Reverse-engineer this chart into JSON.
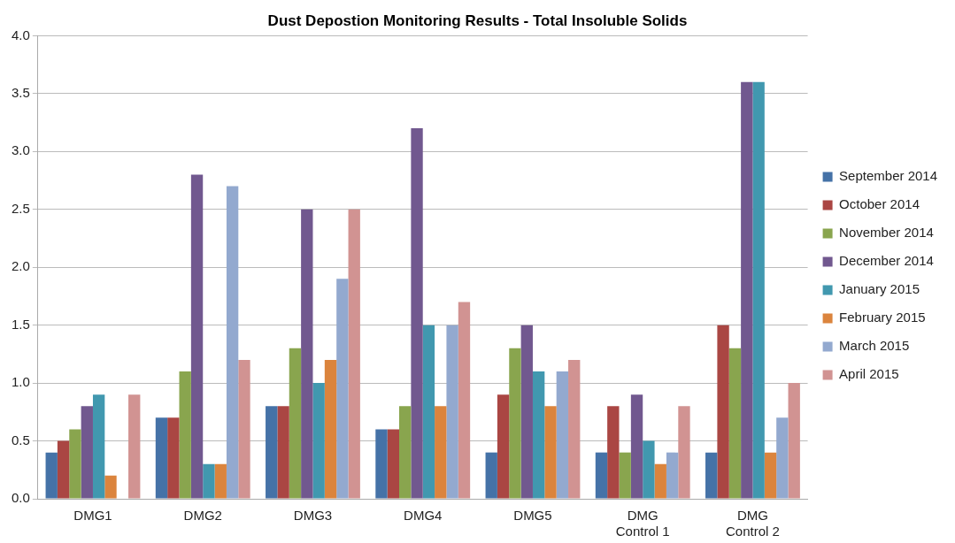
{
  "chart_data": {
    "type": "bar",
    "title": "Dust Depostion Monitoring Results - Total Insoluble Solids",
    "categories": [
      "DMG1",
      "DMG2",
      "DMG3",
      "DMG4",
      "DMG5",
      "DMG Control 1",
      "DMG Control 2"
    ],
    "series": [
      {
        "name": "September 2014",
        "color": "#4572a7",
        "values": [
          0.4,
          0.7,
          0.8,
          0.6,
          0.4,
          0.4,
          0.4
        ]
      },
      {
        "name": "October 2014",
        "color": "#aa4643",
        "values": [
          0.5,
          0.7,
          0.8,
          0.6,
          0.9,
          0.8,
          1.5
        ]
      },
      {
        "name": "November 2014",
        "color": "#89a54e",
        "values": [
          0.6,
          1.1,
          1.3,
          0.8,
          1.3,
          0.4,
          1.3
        ]
      },
      {
        "name": "December 2014",
        "color": "#71588f",
        "values": [
          0.8,
          2.8,
          2.5,
          3.2,
          1.5,
          0.9,
          3.6
        ]
      },
      {
        "name": "January 2015",
        "color": "#4198af",
        "values": [
          0.9,
          0.3,
          1.0,
          1.5,
          1.1,
          0.5,
          3.6
        ]
      },
      {
        "name": "February 2015",
        "color": "#db843d",
        "values": [
          0.2,
          0.3,
          1.2,
          0.8,
          0.8,
          0.3,
          0.4
        ]
      },
      {
        "name": "March 2015",
        "color": "#93a9cf",
        "values": [
          null,
          2.7,
          1.9,
          1.5,
          1.1,
          0.4,
          0.7
        ]
      },
      {
        "name": "April 2015",
        "color": "#d19392",
        "values": [
          0.9,
          1.2,
          2.5,
          1.7,
          1.2,
          0.8,
          1.0
        ]
      }
    ],
    "ylim": [
      0,
      4
    ],
    "yticks": [
      {
        "value": 0,
        "label": "0.0"
      },
      0.5,
      {
        "value": 1,
        "label": "1.0"
      },
      1.5,
      {
        "value": 2,
        "label": "2.0"
      },
      2.5,
      {
        "value": 3,
        "label": "3.0"
      },
      3.5,
      {
        "value": 4,
        "label": "4.0"
      }
    ],
    "grid": "y",
    "legend": "right"
  }
}
